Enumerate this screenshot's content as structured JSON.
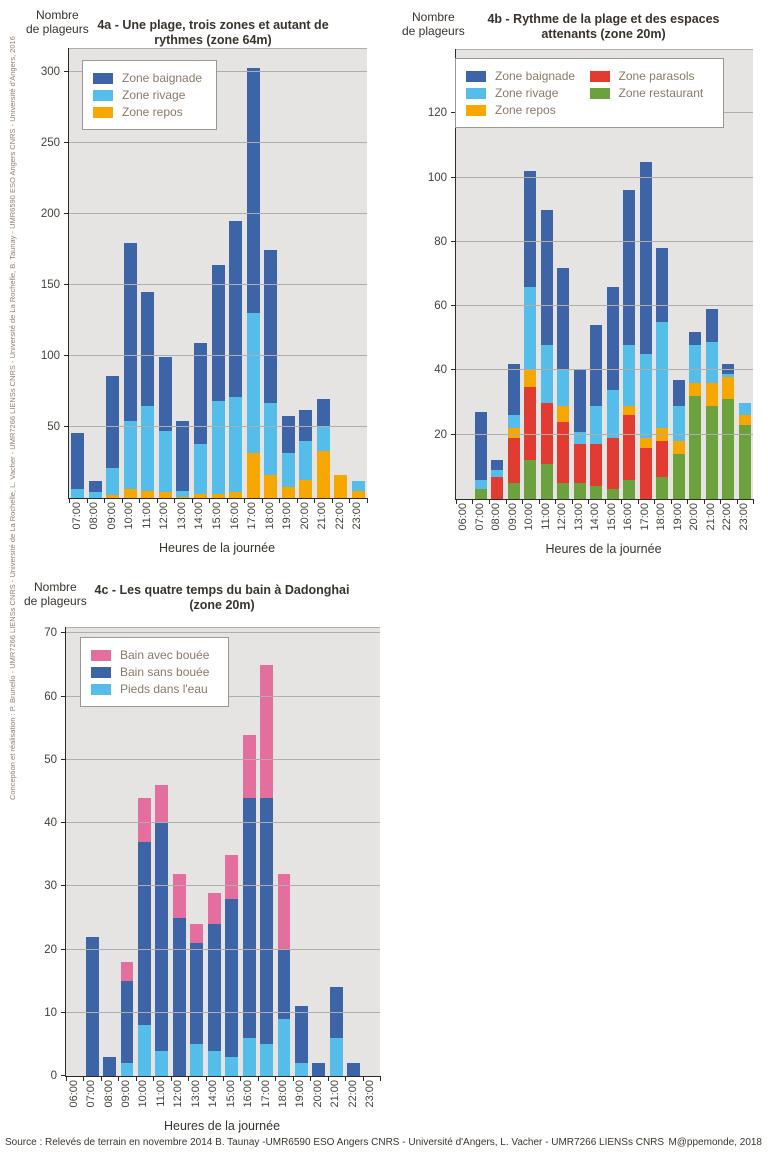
{
  "page": {
    "left_credit": "Conception et réalisation : P. Brunello - UMR7266 LIENSs CNRS - Université de La Rochelle, L. Vacher - UMR7266 LIENSs CNRS - Université de La Rochelle, B. Taunay - UMR6590 ESO Angers CNRS - Université d'Angers, 2016",
    "source": "Source : Relevés de terrain en novembre 2014 B. Taunay -UMR6590 ESO Angers CNRS - Université d'Angers, L. Vacher - UMR7266 LIENSs CNRS",
    "publisher": "M@ppemonde, 2018"
  },
  "colors": {
    "baignade": "#3c64a7",
    "rivage": "#55bdea",
    "repos": "#f6a800",
    "parasols": "#e23c32",
    "restaurant": "#6ca23d",
    "bain_avec_bouee": "#e46f9e",
    "plot_background": "#e5e4e2",
    "gridline": "#b0aeab"
  },
  "chart_data": [
    {
      "id": "4a",
      "type": "bar",
      "stacked": true,
      "title_lines": [
        "4a - Une plage, trois zones et autant de",
        "rythmes (zone 64m)"
      ],
      "ylabel_lines": [
        "Nombre",
        "de plageurs"
      ],
      "xlabel": "Heures de la journée",
      "ylim": [
        0,
        317
      ],
      "yticks": [
        50,
        100,
        150,
        200,
        250,
        300
      ],
      "grid": true,
      "legend_position": "top-left",
      "categories": [
        "07:00",
        "08:00",
        "09:00",
        "10:00",
        "11:00",
        "12:00",
        "13:00",
        "14:00",
        "15:00",
        "16:00",
        "17:00",
        "18:00",
        "19:00",
        "20:00",
        "21:00",
        "22:00",
        "23:00"
      ],
      "series": [
        {
          "name": "Zone repos",
          "color": "#f6a800",
          "values": [
            0,
            0,
            2,
            6,
            5,
            4,
            1,
            3,
            3,
            4,
            32,
            16,
            8,
            13,
            33,
            16,
            5
          ]
        },
        {
          "name": "Zone rivage",
          "color": "#55bdea",
          "values": [
            6,
            4,
            19,
            48,
            60,
            43,
            4,
            35,
            65,
            67,
            98,
            51,
            24,
            27,
            18,
            0,
            7
          ]
        },
        {
          "name": "Zone baignade",
          "color": "#3c64a7",
          "values": [
            40,
            8,
            65,
            126,
            80,
            52,
            49,
            71,
            96,
            124,
            173,
            108,
            26,
            22,
            19,
            0,
            0
          ]
        }
      ],
      "legend_columns": [
        [
          {
            "label": "Zone baignade",
            "color": "#3c64a7"
          },
          {
            "label": "Zone rivage",
            "color": "#55bdea"
          },
          {
            "label": "Zone repos",
            "color": "#f6a800"
          }
        ]
      ]
    },
    {
      "id": "4b",
      "type": "bar",
      "stacked": true,
      "title_lines": [
        "4b - Rythme de la plage et des espaces",
        "attenants (zone 20m)"
      ],
      "ylabel_lines": [
        "Nombre",
        "de plageurs"
      ],
      "xlabel": "Heures de la journée",
      "ylim": [
        0,
        140
      ],
      "yticks": [
        20,
        40,
        60,
        80,
        100,
        120
      ],
      "grid": true,
      "legend_position": "top-left",
      "categories": [
        "06:00",
        "07:00",
        "08:00",
        "09:00",
        "10:00",
        "11:00",
        "12:00",
        "13:00",
        "14:00",
        "15:00",
        "16:00",
        "17:00",
        "18:00",
        "19:00",
        "20:00",
        "21:00",
        "22:00",
        "23:00"
      ],
      "series": [
        {
          "name": "Zone restaurant",
          "color": "#6ca23d",
          "values": [
            0,
            3,
            0,
            5,
            12,
            11,
            5,
            5,
            4,
            3,
            6,
            0,
            7,
            14,
            32,
            29,
            31,
            23
          ]
        },
        {
          "name": "Zone parasols",
          "color": "#e23c32",
          "values": [
            0,
            0,
            7,
            14,
            23,
            19,
            19,
            12,
            13,
            16,
            20,
            16,
            11,
            0,
            0,
            0,
            0,
            0
          ]
        },
        {
          "name": "Zone repos",
          "color": "#f6a800",
          "values": [
            0,
            0,
            0,
            3,
            5,
            0,
            5,
            0,
            0,
            0,
            3,
            3,
            4,
            4,
            4,
            7,
            7,
            3
          ]
        },
        {
          "name": "Zone rivage",
          "color": "#55bdea",
          "values": [
            0,
            3,
            2,
            4,
            26,
            18,
            11,
            4,
            12,
            15,
            19,
            26,
            33,
            11,
            12,
            13,
            1,
            4
          ]
        },
        {
          "name": "Zone baignade",
          "color": "#3c64a7",
          "values": [
            0,
            21,
            3,
            16,
            36,
            42,
            32,
            19,
            25,
            32,
            48,
            60,
            23,
            8,
            4,
            10,
            3,
            0
          ]
        }
      ],
      "legend_columns": [
        [
          {
            "label": "Zone baignade",
            "color": "#3c64a7"
          },
          {
            "label": "Zone rivage",
            "color": "#55bdea"
          },
          {
            "label": "Zone repos",
            "color": "#f6a800"
          }
        ],
        [
          {
            "label": "Zone parasols",
            "color": "#e23c32"
          },
          {
            "label": "Zone restaurant",
            "color": "#6ca23d"
          }
        ]
      ]
    },
    {
      "id": "4c",
      "type": "bar",
      "stacked": true,
      "title_lines": [
        "4c - Les quatre temps du bain à Dadonghai",
        "(zone 20m)"
      ],
      "ylabel_lines": [
        "Nombre",
        "de plageurs"
      ],
      "xlabel": "Heures de la journée",
      "ylim": [
        0,
        71
      ],
      "yticks": [
        0,
        10,
        20,
        30,
        40,
        50,
        60,
        70
      ],
      "grid": true,
      "legend_position": "top-left",
      "categories": [
        "06:00",
        "07:00",
        "08:00",
        "09:00",
        "10:00",
        "11:00",
        "12:00",
        "13:00",
        "14:00",
        "15:00",
        "16:00",
        "17:00",
        "18:00",
        "19:00",
        "20:00",
        "21:00",
        "22:00",
        "23:00"
      ],
      "series": [
        {
          "name": "Pieds dans l'eau",
          "color": "#55bdea",
          "values": [
            0,
            0,
            0,
            2,
            8,
            4,
            0,
            5,
            4,
            3,
            6,
            5,
            9,
            2,
            0,
            6,
            0,
            0
          ]
        },
        {
          "name": "Bain sans bouée",
          "color": "#3c64a7",
          "values": [
            0,
            22,
            3,
            13,
            29,
            36,
            25,
            16,
            20,
            25,
            38,
            39,
            11,
            9,
            2,
            8,
            2,
            0
          ]
        },
        {
          "name": "Bain avec bouée",
          "color": "#e46f9e",
          "values": [
            0,
            0,
            0,
            3,
            7,
            6,
            7,
            3,
            5,
            7,
            10,
            21,
            12,
            0,
            0,
            0,
            0,
            0
          ]
        }
      ],
      "legend_columns": [
        [
          {
            "label": "Bain avec bouée",
            "color": "#e46f9e"
          },
          {
            "label": "Bain sans bouée",
            "color": "#3c64a7"
          },
          {
            "label": "Pieds dans l'eau",
            "color": "#55bdea"
          }
        ]
      ]
    }
  ]
}
